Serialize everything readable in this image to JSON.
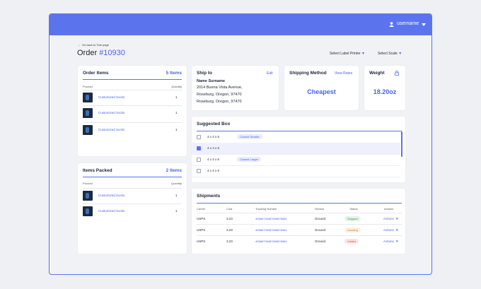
{
  "header": {
    "user": "username"
  },
  "back_link": "Go back to Tote page",
  "order": {
    "label": "Order",
    "number": "#10930"
  },
  "controls": [
    "Select Label Printer",
    "Select Scale"
  ],
  "order_items": {
    "title": "Order Items",
    "count": "5 Items",
    "columns": [
      "Product",
      "Quantity"
    ],
    "rows": [
      {
        "name": "Customized Socks",
        "qty": "1"
      },
      {
        "name": "Customized Socks",
        "qty": "1"
      },
      {
        "name": "Customized Socks",
        "qty": "1"
      }
    ]
  },
  "items_packed": {
    "title": "Items Packed",
    "count": "2 Items",
    "columns": [
      "Product",
      "Quantity"
    ],
    "rows": [
      {
        "name": "Customized Socks",
        "qty": "1"
      },
      {
        "name": "Customized Socks",
        "qty": "1"
      }
    ]
  },
  "ship_to": {
    "title": "Ship to",
    "action": "Edit",
    "lines": [
      "Name Surname",
      "2014 Buena Vista Avenue,",
      "Roseburg, Oregon, 97470",
      "Roseburg, Oregon, 97470"
    ]
  },
  "shipping_method": {
    "title": "Shipping Method",
    "action": "View Rates",
    "value": "Cheapest"
  },
  "weight": {
    "title": "Weight",
    "value": "18.20oz"
  },
  "suggested_box": {
    "title": "Suggested Box",
    "rows": [
      {
        "size": "4 x 4 x 6",
        "tag": "Closest Smaller",
        "checked": false
      },
      {
        "size": "4 x 4 x 6",
        "checked": true
      },
      {
        "size": "4 x 4 x 6",
        "tag": "Closest Larger",
        "checked": false
      },
      {
        "size": "4 x 4 x 6",
        "checked": false
      }
    ]
  },
  "shipments": {
    "title": "Shipments",
    "columns": [
      "Carrier",
      "Cost",
      "Tracking Number",
      "Service",
      "Status",
      "Actions"
    ],
    "rows": [
      {
        "carrier": "USPS",
        "cost": "3.23",
        "tracking": "49586739487605876594",
        "service": "Ground",
        "status": "Shipped",
        "status_color": "#3a9a4a",
        "status_bg": "#e4f5e6",
        "action": "Actions"
      },
      {
        "carrier": "USPS",
        "cost": "3.23",
        "tracking": "49586739487605876594",
        "service": "Ground",
        "status": "Awaiting",
        "status_color": "#e08a2c",
        "status_bg": "#fdf0e1",
        "action": "Actions"
      },
      {
        "carrier": "USPS",
        "cost": "3.23",
        "tracking": "49586739487605876594",
        "service": "Ground",
        "status": "Voided",
        "status_color": "#d9534f",
        "status_bg": "#fbe5e4",
        "action": "Actions"
      }
    ]
  }
}
